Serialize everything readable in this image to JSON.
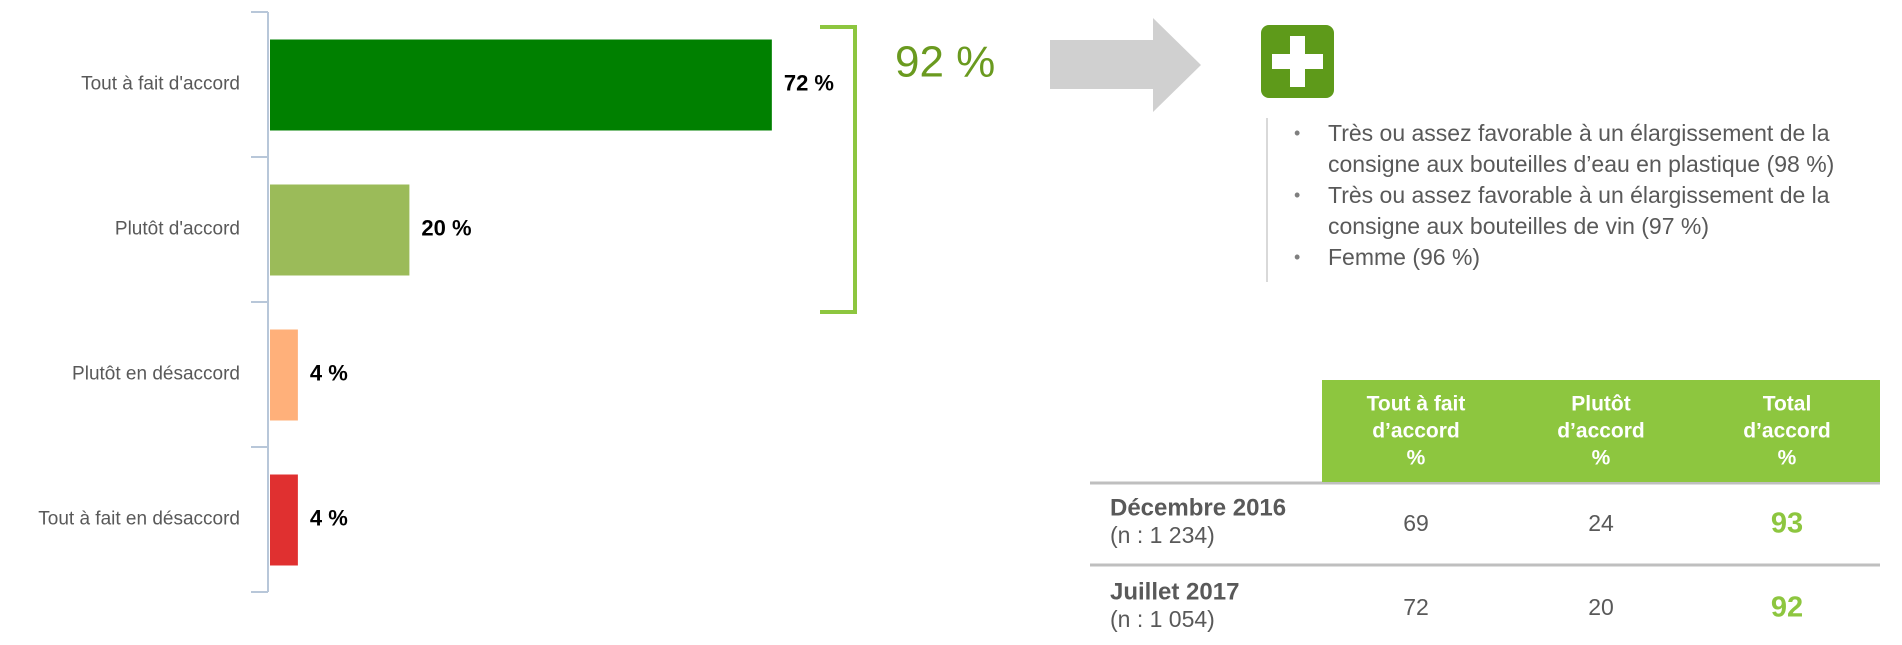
{
  "chart_data": {
    "type": "bar",
    "orientation": "horizontal",
    "categories": [
      "Tout à fait d'accord",
      "Plutôt d'accord",
      "Plutôt en désaccord",
      "Tout à fait en désaccord"
    ],
    "values": [
      72,
      20,
      4,
      4
    ],
    "value_labels": [
      "72 %",
      "20 %",
      "4 %",
      "4 %"
    ],
    "colors": [
      "#008000",
      "#9bbb59",
      "#ffb07a",
      "#e03030"
    ],
    "xlim": [
      0,
      100
    ],
    "annotation": "92 %"
  },
  "bullets": [
    "Très ou assez favorable à un élargissement de la consigne aux bouteilles d’eau en plastique (98 %)",
    "Très ou assez favorable à un élargissement de la consigne aux bouteilles de vin (97 %)",
    "Femme (96 %)"
  ],
  "table": {
    "header": [
      [
        "Tout à fait",
        "d’accord",
        "%"
      ],
      [
        "Plutôt",
        "d’accord",
        "%"
      ],
      [
        "Total",
        "d’accord",
        "%"
      ]
    ],
    "rows": [
      {
        "label": "Décembre 2016",
        "sub": "(n : 1 234)",
        "cells": [
          "69",
          "24",
          "93"
        ]
      },
      {
        "label": "Juillet 2017",
        "sub": "(n : 1 054)",
        "cells": [
          "72",
          "20",
          "92"
        ]
      }
    ]
  }
}
